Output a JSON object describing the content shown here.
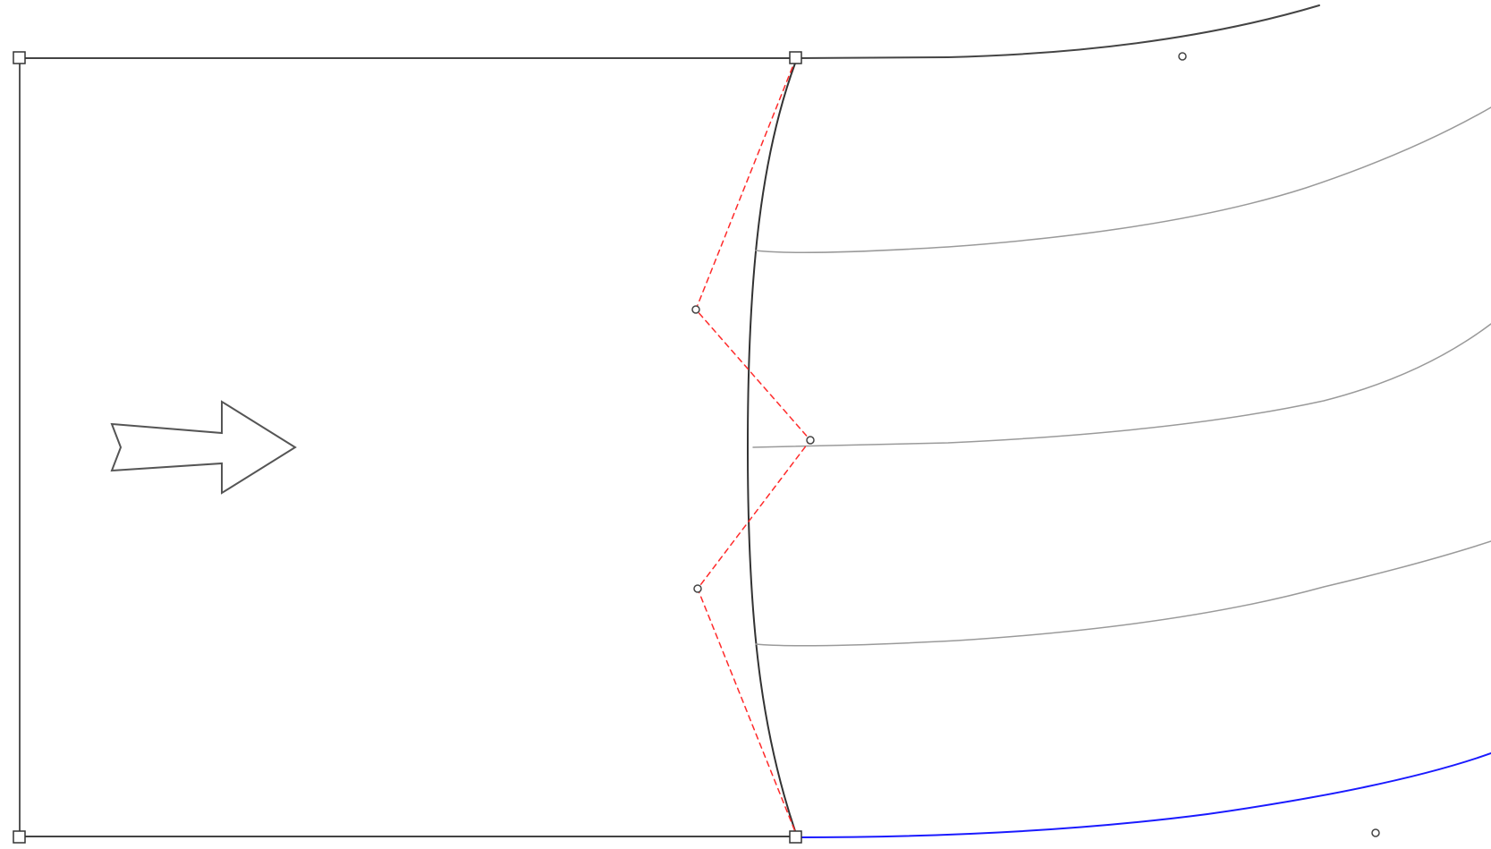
{
  "colors": {
    "background": "#ffffff",
    "frame": "#444444",
    "inlet_curve": "#333333",
    "flow_lines": "#9a9a9a",
    "top_wall": "#444444",
    "bottom_wall": "#1a1aff",
    "control_polygon": "#ff2a2a",
    "arrow": "#555555"
  },
  "icons": {
    "flow_arrow": "right-arrow-icon",
    "corner_handle": "square-handle-icon",
    "control_point": "circle-point-icon"
  }
}
